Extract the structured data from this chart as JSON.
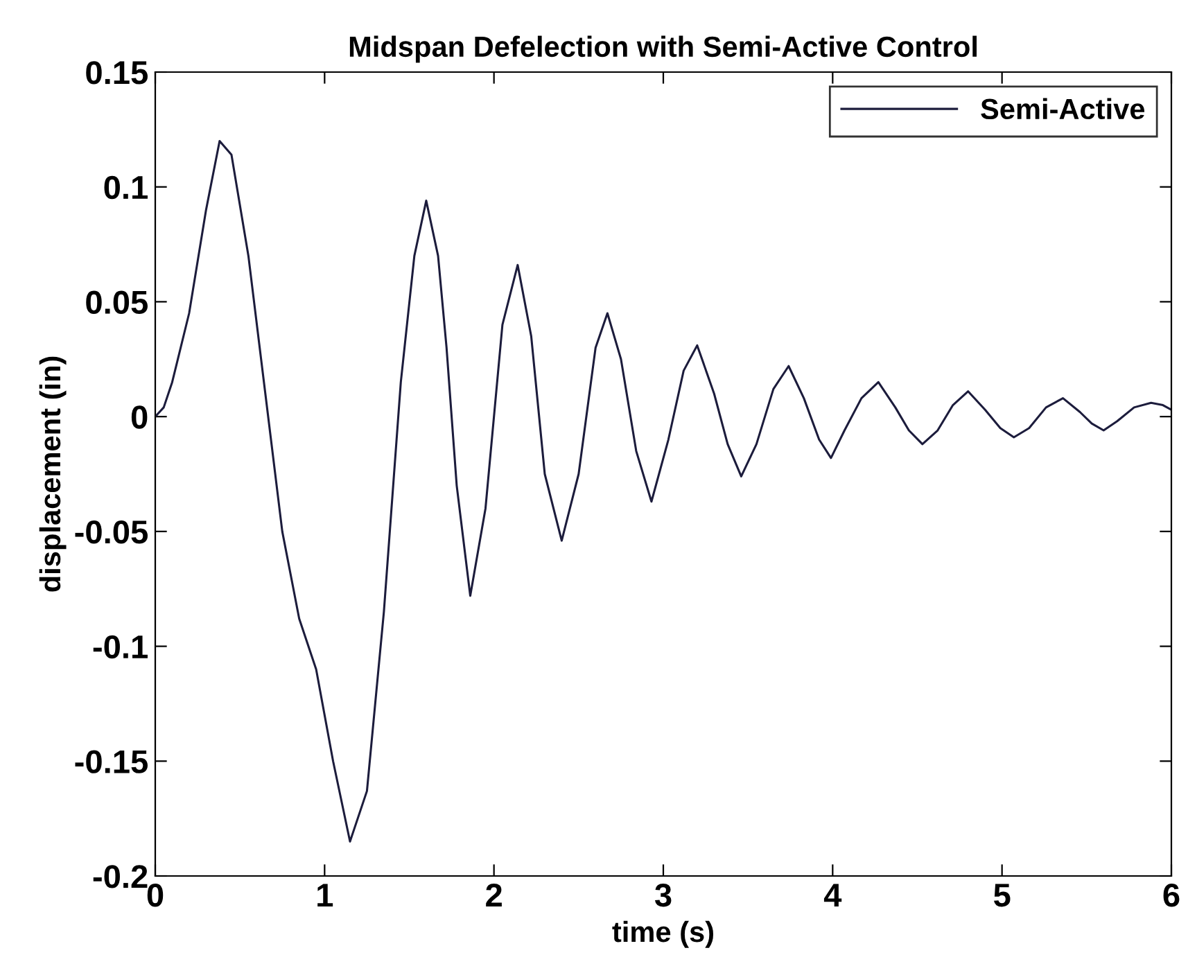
{
  "chart_data": {
    "type": "line",
    "title": "Midspan Defelection with Semi-Active Control",
    "xlabel": "time (s)",
    "ylabel": "displacement (in)",
    "xlim": [
      0,
      6
    ],
    "xticks": [
      0,
      1,
      2,
      3,
      4,
      5,
      6
    ],
    "ylim": [
      -0.2,
      0.15
    ],
    "yticks": [
      -0.2,
      -0.15,
      -0.1,
      -0.05,
      0,
      0.05,
      0.1,
      0.15
    ],
    "grid": false,
    "legend": "top right",
    "marker": "none",
    "line_style": "solid",
    "series": [
      {
        "name": "Semi-Active",
        "color": "#1c1c3c",
        "x": [
          0,
          0.05,
          0.1,
          0.2,
          0.3,
          0.38,
          0.45,
          0.55,
          0.65,
          0.75,
          0.85,
          0.95,
          1.05,
          1.15,
          1.25,
          1.35,
          1.45,
          1.53,
          1.6,
          1.67,
          1.72,
          1.78,
          1.86,
          1.95,
          2.05,
          2.14,
          2.22,
          2.3,
          2.4,
          2.5,
          2.6,
          2.67,
          2.75,
          2.84,
          2.93,
          3.03,
          3.12,
          3.2,
          3.3,
          3.38,
          3.46,
          3.55,
          3.65,
          3.74,
          3.83,
          3.92,
          3.99,
          4.07,
          4.17,
          4.27,
          4.37,
          4.45,
          4.53,
          4.62,
          4.71,
          4.8,
          4.9,
          4.99,
          5.07,
          5.16,
          5.26,
          5.36,
          5.46,
          5.53,
          5.6,
          5.68,
          5.78,
          5.88,
          5.95,
          6.0
        ],
        "values": [
          0,
          0.004,
          0.015,
          0.045,
          0.09,
          0.12,
          0.114,
          0.07,
          0.01,
          -0.05,
          -0.088,
          -0.11,
          -0.15,
          -0.185,
          -0.163,
          -0.085,
          0.015,
          0.07,
          0.094,
          0.07,
          0.03,
          -0.03,
          -0.078,
          -0.04,
          0.04,
          0.066,
          0.035,
          -0.025,
          -0.054,
          -0.025,
          0.03,
          0.045,
          0.025,
          -0.015,
          -0.037,
          -0.01,
          0.02,
          0.031,
          0.01,
          -0.012,
          -0.026,
          -0.012,
          0.012,
          0.022,
          0.008,
          -0.01,
          -0.018,
          -0.006,
          0.008,
          0.015,
          0.004,
          -0.006,
          -0.012,
          -0.006,
          0.005,
          0.011,
          0.003,
          -0.005,
          -0.009,
          -0.005,
          0.004,
          0.008,
          0.002,
          -0.003,
          -0.006,
          -0.002,
          0.004,
          0.006,
          0.005,
          0.003
        ]
      }
    ]
  }
}
